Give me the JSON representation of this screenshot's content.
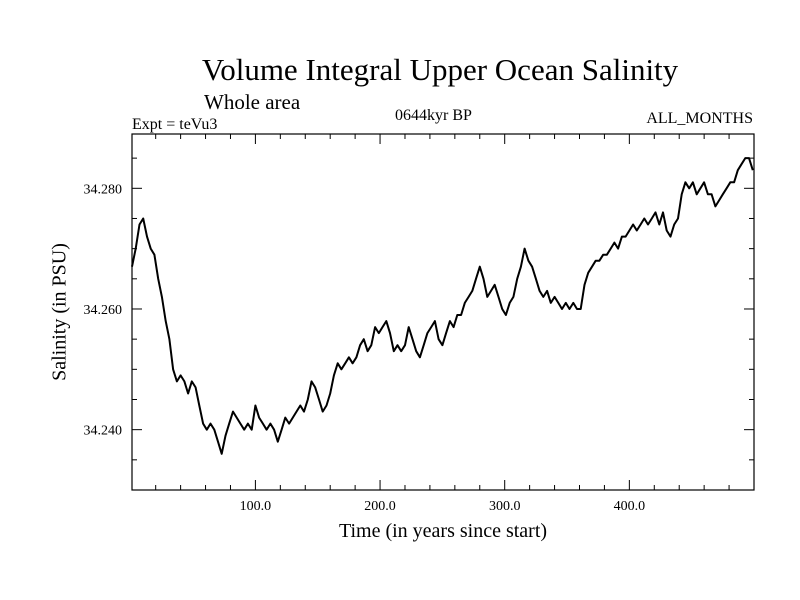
{
  "chart_data": {
    "type": "line",
    "title": "Volume Integral Upper Ocean Salinity",
    "subtitle": "Whole area",
    "left_label": "Expt = teVu3",
    "center_label": "0644kyr BP",
    "right_label": "ALL_MONTHS",
    "xlabel": "Time (in years since start)",
    "ylabel": "Salinity (in PSU)",
    "xlim": [
      1,
      500
    ],
    "ylim": [
      34.23,
      34.289
    ],
    "xticks": [
      100,
      200,
      300,
      400
    ],
    "xtick_labels": [
      "100.0",
      "200.0",
      "300.0",
      "400.0"
    ],
    "yticks": [
      34.24,
      34.26,
      34.28
    ],
    "ytick_labels": [
      "34.240",
      "34.260",
      "34.280"
    ],
    "grid": false,
    "series": [
      {
        "color": "#000000",
        "x": [
          1,
          4,
          7,
          10,
          13,
          16,
          19,
          22,
          25,
          28,
          31,
          34,
          37,
          40,
          43,
          46,
          49,
          52,
          55,
          58,
          61,
          64,
          67,
          70,
          73,
          76,
          79,
          82,
          85,
          88,
          91,
          94,
          97,
          100,
          103,
          106,
          109,
          112,
          115,
          118,
          121,
          124,
          127,
          130,
          133,
          136,
          139,
          142,
          145,
          148,
          151,
          154,
          157,
          160,
          163,
          166,
          169,
          172,
          175,
          178,
          181,
          184,
          187,
          190,
          193,
          196,
          199,
          202,
          205,
          208,
          211,
          214,
          217,
          220,
          223,
          226,
          229,
          232,
          235,
          238,
          241,
          244,
          247,
          250,
          253,
          256,
          259,
          262,
          265,
          268,
          271,
          274,
          277,
          280,
          283,
          286,
          289,
          292,
          295,
          298,
          301,
          304,
          307,
          310,
          313,
          316,
          319,
          322,
          325,
          328,
          331,
          334,
          337,
          340,
          343,
          346,
          349,
          352,
          355,
          358,
          361,
          364,
          367,
          370,
          373,
          376,
          379,
          382,
          385,
          388,
          391,
          394,
          397,
          400,
          403,
          406,
          409,
          412,
          415,
          418,
          421,
          424,
          427,
          430,
          433,
          436,
          439,
          442,
          445,
          448,
          451,
          454,
          457,
          460,
          463,
          466,
          469,
          472,
          475,
          478,
          481,
          484,
          487,
          490,
          493,
          496,
          499
        ],
        "y": [
          34.267,
          34.27,
          34.274,
          34.275,
          34.272,
          34.27,
          34.269,
          34.265,
          34.262,
          34.258,
          34.255,
          34.25,
          34.248,
          34.249,
          34.248,
          34.246,
          34.248,
          34.247,
          34.244,
          34.241,
          34.24,
          34.241,
          34.24,
          34.238,
          34.236,
          34.239,
          34.241,
          34.243,
          34.242,
          34.241,
          34.24,
          34.241,
          34.24,
          34.244,
          34.242,
          34.241,
          34.24,
          34.241,
          34.24,
          34.238,
          34.24,
          34.242,
          34.241,
          34.242,
          34.243,
          34.244,
          34.243,
          34.245,
          34.248,
          34.247,
          34.245,
          34.243,
          34.244,
          34.246,
          34.249,
          34.251,
          34.25,
          34.251,
          34.252,
          34.251,
          34.252,
          34.254,
          34.255,
          34.253,
          34.254,
          34.257,
          34.256,
          34.257,
          34.258,
          34.256,
          34.253,
          34.254,
          34.253,
          34.254,
          34.257,
          34.255,
          34.253,
          34.252,
          34.254,
          34.256,
          34.257,
          34.258,
          34.255,
          34.254,
          34.256,
          34.258,
          34.257,
          34.259,
          34.259,
          34.261,
          34.262,
          34.263,
          34.265,
          34.267,
          34.265,
          34.262,
          34.263,
          34.264,
          34.262,
          34.26,
          34.259,
          34.261,
          34.262,
          34.265,
          34.267,
          34.27,
          34.268,
          34.267,
          34.265,
          34.263,
          34.262,
          34.263,
          34.261,
          34.262,
          34.261,
          34.26,
          34.261,
          34.26,
          34.261,
          34.26,
          34.26,
          34.264,
          34.266,
          34.267,
          34.268,
          34.268,
          34.269,
          34.269,
          34.27,
          34.271,
          34.27,
          34.272,
          34.272,
          34.273,
          34.274,
          34.273,
          34.274,
          34.275,
          34.274,
          34.275,
          34.276,
          34.274,
          34.276,
          34.273,
          34.272,
          34.274,
          34.275,
          34.279,
          34.281,
          34.28,
          34.281,
          34.279,
          34.28,
          34.281,
          34.279,
          34.279,
          34.277,
          34.278,
          34.279,
          34.28,
          34.281,
          34.281,
          34.283,
          34.284,
          34.285,
          34.285,
          34.283
        ]
      }
    ]
  }
}
